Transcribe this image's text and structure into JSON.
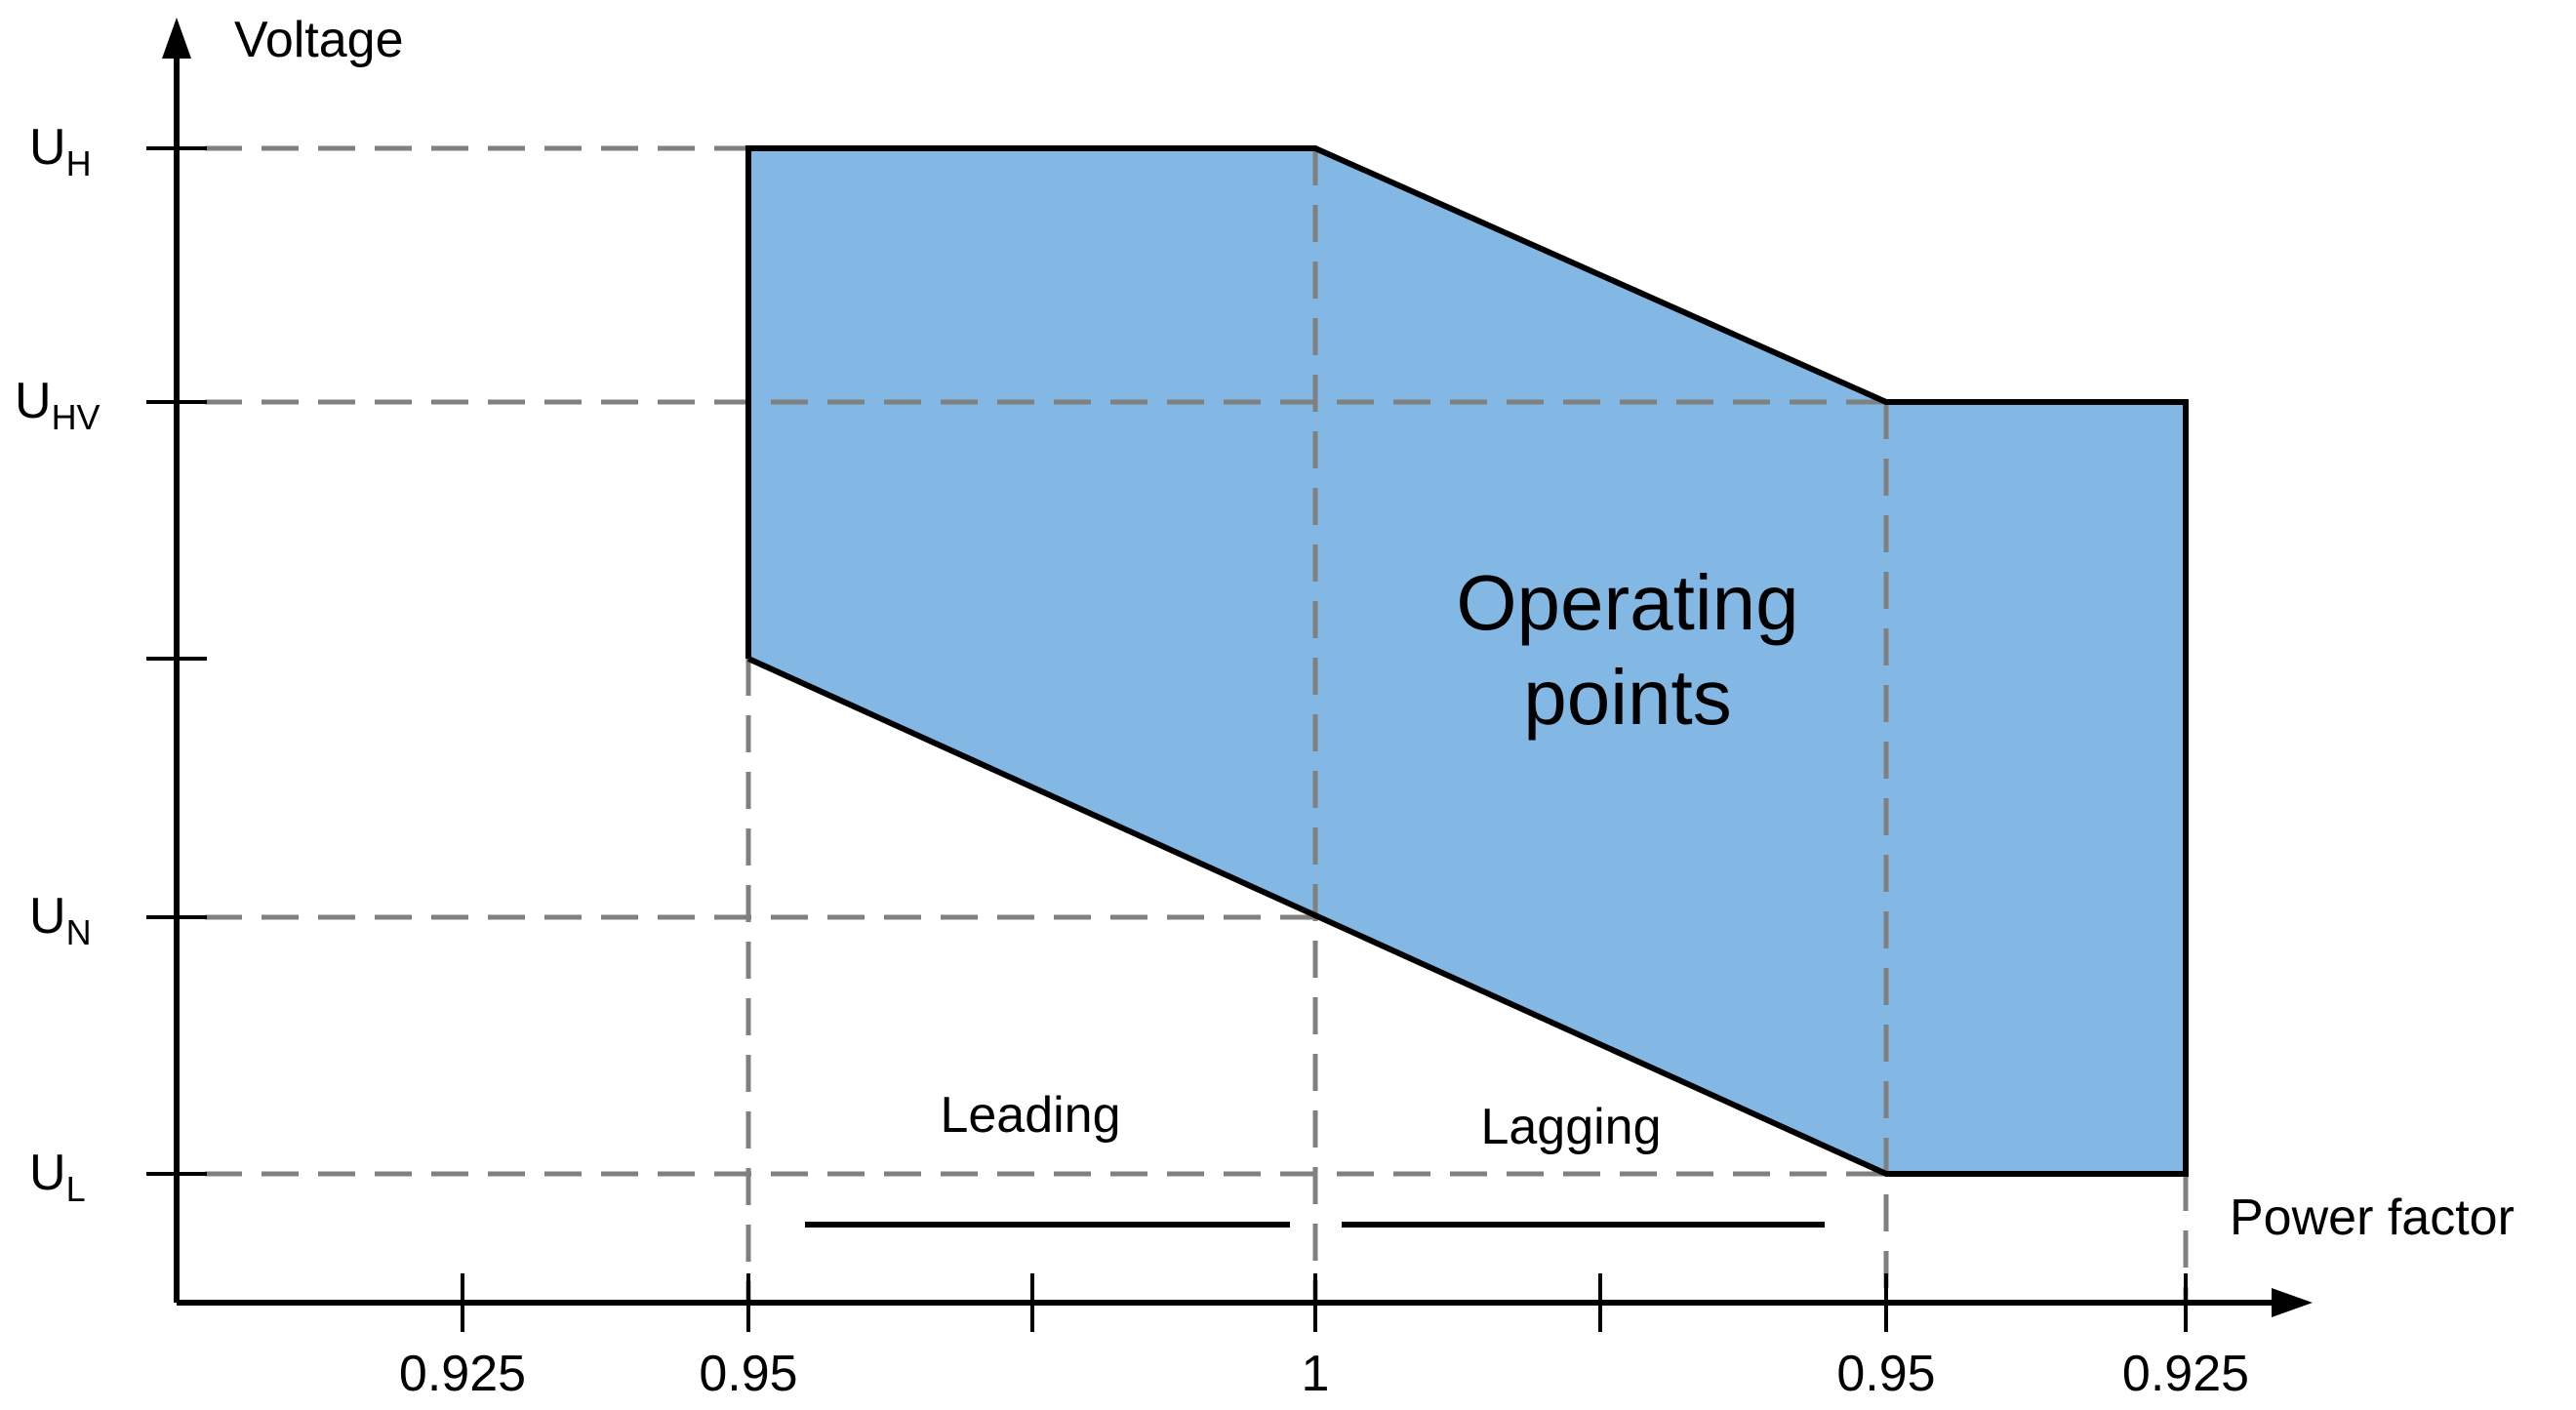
{
  "diagram": {
    "y_axis_label": "Voltage",
    "x_axis_label": "Power factor",
    "x_ticks": [
      "0.925",
      "0.95",
      "1",
      "0.95",
      "0.925"
    ],
    "y_levels": [
      {
        "main": "U",
        "sub": "H"
      },
      {
        "main": "U",
        "sub": "HV"
      },
      {
        "main": "U",
        "sub": "N"
      },
      {
        "main": "U",
        "sub": "L"
      }
    ],
    "region_label_line1": "Operating",
    "region_label_line2": "points",
    "leading_label": "Leading",
    "lagging_label": "Lagging",
    "colors": {
      "region_fill": "#84B8E4",
      "guide_lines": "#808080",
      "outline": "#000000"
    }
  }
}
